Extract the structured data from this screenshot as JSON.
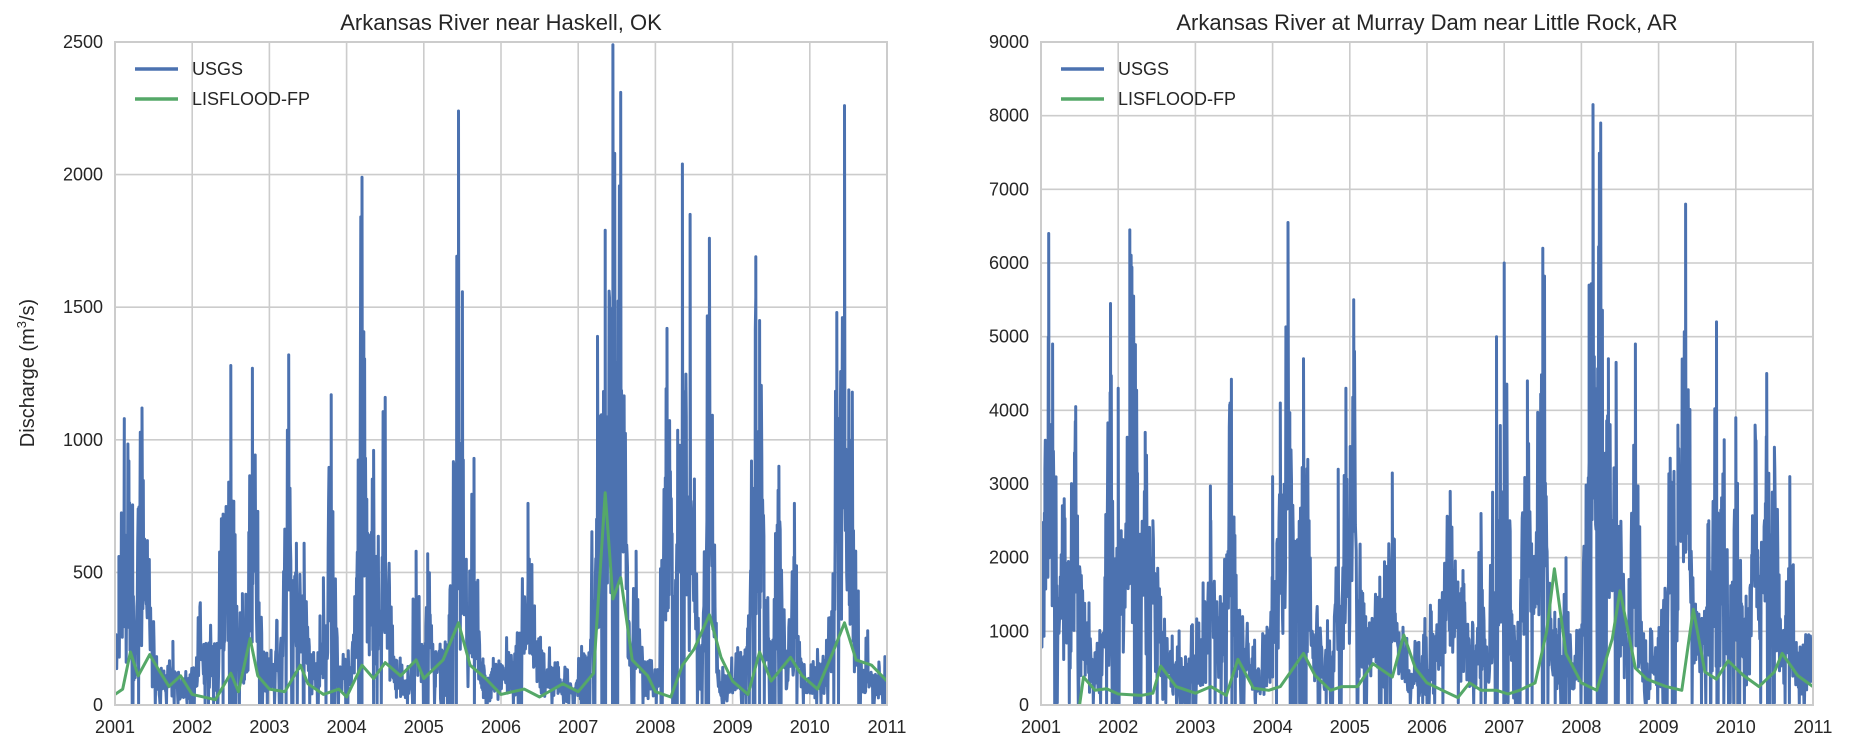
{
  "chart_data": [
    {
      "type": "line",
      "title": "Arkansas River near Haskell, OK",
      "xlabel": "",
      "ylabel": "Discharge (m³/s)",
      "xlim": [
        2001,
        2011
      ],
      "ylim": [
        0,
        2500
      ],
      "xticks": [
        "2001",
        "2002",
        "2003",
        "2004",
        "2005",
        "2006",
        "2007",
        "2008",
        "2009",
        "2010",
        "2011"
      ],
      "yticks": [
        "0",
        "500",
        "1000",
        "1500",
        "2000",
        "2500"
      ],
      "grid": true,
      "legend_position": "upper left",
      "series": [
        {
          "name": "USGS",
          "color": "#4C72B0",
          "peaks": [
            [
              2001.05,
              560
            ],
            [
              2001.12,
              1080
            ],
            [
              2001.18,
              920
            ],
            [
              2001.35,
              1120
            ],
            [
              2001.42,
              620
            ],
            [
              2001.75,
              240
            ],
            [
              2002.1,
              370
            ],
            [
              2002.4,
              720
            ],
            [
              2002.5,
              1280
            ],
            [
              2002.65,
              420
            ],
            [
              2002.78,
              1270
            ],
            [
              2002.85,
              730
            ],
            [
              2003.1,
              280
            ],
            [
              2003.25,
              1320
            ],
            [
              2003.35,
              610
            ],
            [
              2003.45,
              610
            ],
            [
              2003.7,
              480
            ],
            [
              2003.8,
              1170
            ],
            [
              2004.2,
              1990
            ],
            [
              2004.35,
              960
            ],
            [
              2004.5,
              1160
            ],
            [
              2004.9,
              580
            ],
            [
              2005.05,
              570
            ],
            [
              2005.45,
              2240
            ],
            [
              2005.65,
              930
            ],
            [
              2006.35,
              760
            ],
            [
              2007.25,
              1390
            ],
            [
              2007.35,
              1790
            ],
            [
              2007.45,
              2490
            ],
            [
              2007.55,
              2310
            ],
            [
              2007.75,
              580
            ],
            [
              2008.15,
              1420
            ],
            [
              2008.35,
              2040
            ],
            [
              2008.45,
              1850
            ],
            [
              2008.7,
              1760
            ],
            [
              2009.3,
              1690
            ],
            [
              2009.35,
              1450
            ],
            [
              2009.6,
              900
            ],
            [
              2009.8,
              760
            ],
            [
              2010.35,
              1480
            ],
            [
              2010.45,
              2260
            ],
            [
              2010.55,
              1180
            ],
            [
              2010.75,
              280
            ]
          ]
        },
        {
          "name": "LISFLOOD-FP",
          "color": "#55A868",
          "points": [
            [
              2001.0,
              40
            ],
            [
              2001.1,
              60
            ],
            [
              2001.2,
              200
            ],
            [
              2001.3,
              110
            ],
            [
              2001.45,
              190
            ],
            [
              2001.55,
              140
            ],
            [
              2001.7,
              70
            ],
            [
              2001.85,
              110
            ],
            [
              2002.0,
              40
            ],
            [
              2002.3,
              20
            ],
            [
              2002.5,
              120
            ],
            [
              2002.6,
              50
            ],
            [
              2002.75,
              250
            ],
            [
              2002.85,
              110
            ],
            [
              2003.0,
              60
            ],
            [
              2003.2,
              50
            ],
            [
              2003.4,
              150
            ],
            [
              2003.5,
              80
            ],
            [
              2003.7,
              40
            ],
            [
              2003.9,
              60
            ],
            [
              2004.0,
              30
            ],
            [
              2004.2,
              150
            ],
            [
              2004.35,
              100
            ],
            [
              2004.5,
              160
            ],
            [
              2004.7,
              110
            ],
            [
              2004.9,
              170
            ],
            [
              2005.0,
              100
            ],
            [
              2005.25,
              170
            ],
            [
              2005.45,
              310
            ],
            [
              2005.6,
              150
            ],
            [
              2005.8,
              100
            ],
            [
              2006.0,
              40
            ],
            [
              2006.3,
              60
            ],
            [
              2006.5,
              30
            ],
            [
              2006.8,
              80
            ],
            [
              2007.0,
              50
            ],
            [
              2007.2,
              120
            ],
            [
              2007.35,
              800
            ],
            [
              2007.45,
              400
            ],
            [
              2007.55,
              480
            ],
            [
              2007.7,
              170
            ],
            [
              2007.9,
              110
            ],
            [
              2008.0,
              50
            ],
            [
              2008.2,
              30
            ],
            [
              2008.35,
              150
            ],
            [
              2008.5,
              210
            ],
            [
              2008.7,
              340
            ],
            [
              2008.85,
              180
            ],
            [
              2009.0,
              90
            ],
            [
              2009.2,
              40
            ],
            [
              2009.35,
              200
            ],
            [
              2009.5,
              90
            ],
            [
              2009.75,
              180
            ],
            [
              2009.9,
              110
            ],
            [
              2010.1,
              60
            ],
            [
              2010.3,
              200
            ],
            [
              2010.45,
              310
            ],
            [
              2010.6,
              170
            ],
            [
              2010.8,
              150
            ],
            [
              2011.0,
              90
            ]
          ]
        }
      ]
    },
    {
      "type": "line",
      "title": "Arkansas River at Murray Dam near Little Rock, AR",
      "xlabel": "",
      "ylabel": "",
      "xlim": [
        2001,
        2011
      ],
      "ylim": [
        0,
        9000
      ],
      "xticks": [
        "2001",
        "2002",
        "2003",
        "2004",
        "2005",
        "2006",
        "2007",
        "2008",
        "2009",
        "2010",
        "2011"
      ],
      "yticks": [
        "0",
        "1000",
        "2000",
        "3000",
        "4000",
        "5000",
        "6000",
        "7000",
        "8000",
        "9000"
      ],
      "grid": true,
      "legend_position": "upper left",
      "series": [
        {
          "name": "USGS",
          "color": "#4C72B0",
          "peaks": [
            [
              2001.05,
              3200
            ],
            [
              2001.1,
              6400
            ],
            [
              2001.15,
              4900
            ],
            [
              2001.3,
              2800
            ],
            [
              2001.45,
              4050
            ],
            [
              2001.9,
              5450
            ],
            [
              2002.0,
              4300
            ],
            [
              2002.15,
              6450
            ],
            [
              2002.2,
              5550
            ],
            [
              2002.35,
              3700
            ],
            [
              2002.45,
              2500
            ],
            [
              2003.2,
              2500
            ],
            [
              2003.45,
              4100
            ],
            [
              2004.0,
              3100
            ],
            [
              2004.1,
              4100
            ],
            [
              2004.2,
              6550
            ],
            [
              2004.4,
              4700
            ],
            [
              2004.85,
              3200
            ],
            [
              2004.95,
              4300
            ],
            [
              2005.05,
              5500
            ],
            [
              2005.55,
              3150
            ],
            [
              2006.3,
              2900
            ],
            [
              2006.7,
              2600
            ],
            [
              2006.9,
              5000
            ],
            [
              2007.0,
              6000
            ],
            [
              2007.3,
              4400
            ],
            [
              2007.5,
              6200
            ],
            [
              2007.8,
              2000
            ],
            [
              2008.1,
              5700
            ],
            [
              2008.15,
              8150
            ],
            [
              2008.25,
              7900
            ],
            [
              2008.35,
              4700
            ],
            [
              2008.45,
              4650
            ],
            [
              2008.7,
              4900
            ],
            [
              2009.15,
              3350
            ],
            [
              2009.25,
              3800
            ],
            [
              2009.35,
              6800
            ],
            [
              2009.65,
              2500
            ],
            [
              2009.75,
              5200
            ],
            [
              2009.85,
              3600
            ],
            [
              2010.0,
              3900
            ],
            [
              2010.25,
              3800
            ],
            [
              2010.4,
              4500
            ],
            [
              2010.5,
              3500
            ],
            [
              2010.7,
              3100
            ],
            [
              2010.95,
              600
            ]
          ]
        },
        {
          "name": "LISFLOOD-FP",
          "color": "#55A868",
          "points": [
            [
              2001.5,
              0
            ],
            [
              2001.55,
              380
            ],
            [
              2001.7,
              200
            ],
            [
              2001.85,
              220
            ],
            [
              2002.0,
              150
            ],
            [
              2002.3,
              130
            ],
            [
              2002.45,
              160
            ],
            [
              2002.55,
              530
            ],
            [
              2002.75,
              250
            ],
            [
              2003.0,
              160
            ],
            [
              2003.2,
              250
            ],
            [
              2003.4,
              130
            ],
            [
              2003.55,
              620
            ],
            [
              2003.75,
              230
            ],
            [
              2003.95,
              200
            ],
            [
              2004.1,
              250
            ],
            [
              2004.3,
              550
            ],
            [
              2004.4,
              700
            ],
            [
              2004.55,
              400
            ],
            [
              2004.75,
              200
            ],
            [
              2004.9,
              250
            ],
            [
              2005.1,
              250
            ],
            [
              2005.3,
              560
            ],
            [
              2005.55,
              380
            ],
            [
              2005.7,
              950
            ],
            [
              2005.85,
              500
            ],
            [
              2006.0,
              300
            ],
            [
              2006.2,
              200
            ],
            [
              2006.4,
              100
            ],
            [
              2006.55,
              300
            ],
            [
              2006.7,
              200
            ],
            [
              2006.9,
              200
            ],
            [
              2007.05,
              150
            ],
            [
              2007.2,
              200
            ],
            [
              2007.4,
              300
            ],
            [
              2007.55,
              1000
            ],
            [
              2007.65,
              1850
            ],
            [
              2007.8,
              700
            ],
            [
              2008.0,
              300
            ],
            [
              2008.2,
              200
            ],
            [
              2008.4,
              900
            ],
            [
              2008.5,
              1550
            ],
            [
              2008.7,
              500
            ],
            [
              2008.85,
              350
            ],
            [
              2009.1,
              250
            ],
            [
              2009.3,
              200
            ],
            [
              2009.45,
              1300
            ],
            [
              2009.6,
              450
            ],
            [
              2009.75,
              350
            ],
            [
              2009.9,
              600
            ],
            [
              2010.1,
              400
            ],
            [
              2010.3,
              250
            ],
            [
              2010.5,
              450
            ],
            [
              2010.6,
              700
            ],
            [
              2010.8,
              400
            ],
            [
              2011.0,
              250
            ]
          ]
        }
      ]
    }
  ],
  "panels": [
    {
      "title": "Arkansas River near Haskell, OK",
      "ylabel": "Discharge (m",
      "ylabel_sup": "3",
      "ylabel_tail": "/s)",
      "legend": [
        "USGS",
        "LISFLOOD-FP"
      ]
    },
    {
      "title": "Arkansas River at Murray Dam near Little Rock, AR",
      "legend": [
        "USGS",
        "LISFLOOD-FP"
      ]
    }
  ]
}
